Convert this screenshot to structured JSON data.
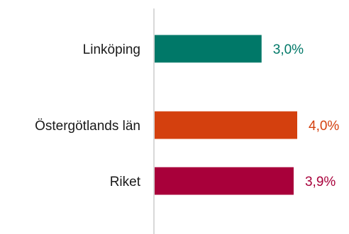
{
  "chart_data": {
    "type": "bar",
    "orientation": "horizontal",
    "categories": [
      "Linköping",
      "Östergötlands län",
      "Riket"
    ],
    "values": [
      3.0,
      4.0,
      3.9
    ],
    "value_labels": [
      "3,0%",
      "4,0%",
      "3,9%"
    ],
    "colors": [
      "#007868",
      "#d4400e",
      "#a8003a"
    ],
    "xlim": [
      0,
      4.0
    ],
    "grid": false,
    "legend": "none"
  }
}
